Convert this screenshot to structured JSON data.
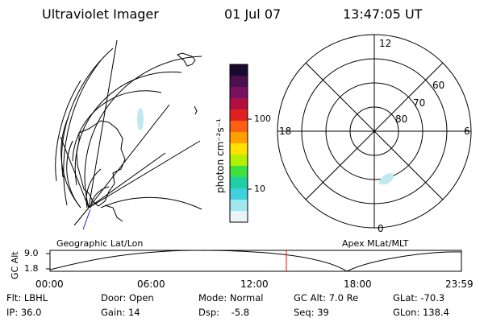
{
  "header": {
    "title": "Ultraviolet Imager",
    "date": "01 Jul 07",
    "time": "13:47:05 UT"
  },
  "colorbar": {
    "label": "photon cm⁻²s⁻¹",
    "ticks": [
      "100",
      "10"
    ],
    "colors": [
      "#1a0a2e",
      "#4a1050",
      "#7a1060",
      "#b01040",
      "#e02020",
      "#ff6010",
      "#ffa000",
      "#ffe000",
      "#b0f000",
      "#40e040",
      "#20d0a0",
      "#40d0e0",
      "#a0e8f0",
      "#e8f4f8"
    ]
  },
  "left_panel": {
    "label": "Geographic Lat/Lon"
  },
  "right_panel": {
    "label": "Apex MLat/MLT",
    "mlt_labels": {
      "top": "12",
      "left": "18",
      "right": "6",
      "bottom": "0"
    },
    "lat_labels": [
      "60",
      "70",
      "80"
    ]
  },
  "timeline": {
    "ylabel": "GC Alt",
    "yticks": [
      "9.0",
      "1.8"
    ],
    "xticks": [
      "00:00",
      "06:00",
      "12:00",
      "18:00",
      "23:59"
    ],
    "current_time_fraction": 0.5746,
    "marker_color": "#ff0000"
  },
  "footer": {
    "row1": [
      "Flt: LBHL",
      "Door: Open",
      "Mode: Normal",
      "GC Alt: 7.0 Re",
      "GLat: -70.3"
    ],
    "row2": [
      "IP: 36.0",
      "Gain: 14",
      "Dsp:    -5.8",
      "Seq: 39",
      "GLon: 138.4"
    ]
  }
}
